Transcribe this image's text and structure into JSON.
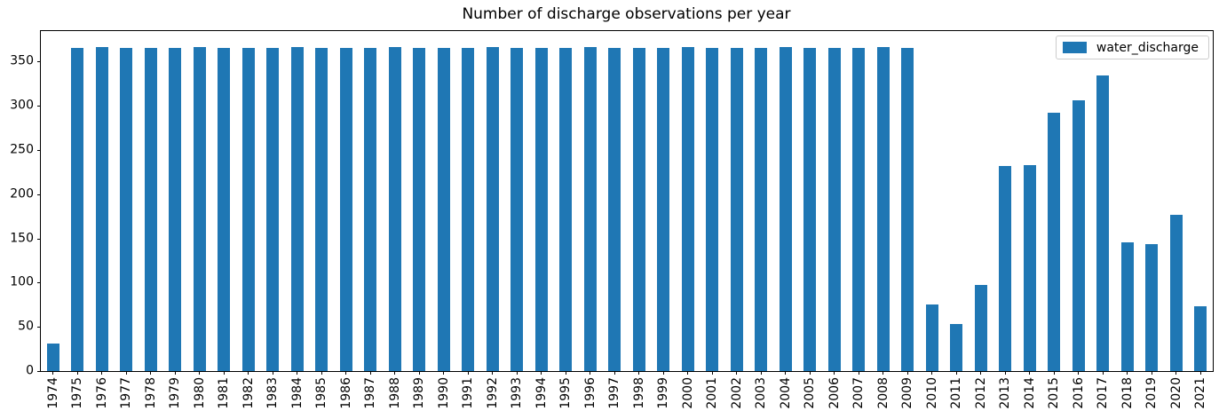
{
  "chart_data": {
    "type": "bar",
    "title": "Number of discharge observations per year",
    "legend_label": "water_discharge",
    "legend_position": "upper right",
    "grid": false,
    "bar_color": "#1f77b4",
    "xlabel": "",
    "ylabel": "",
    "ylim": [
      0,
      384.3
    ],
    "yticks": [
      0,
      50,
      100,
      150,
      200,
      250,
      300,
      350
    ],
    "categories": [
      "1974",
      "1975",
      "1976",
      "1977",
      "1978",
      "1979",
      "1980",
      "1981",
      "1982",
      "1983",
      "1984",
      "1985",
      "1986",
      "1987",
      "1988",
      "1989",
      "1990",
      "1991",
      "1992",
      "1993",
      "1994",
      "1995",
      "1996",
      "1997",
      "1998",
      "1999",
      "2000",
      "2001",
      "2002",
      "2003",
      "2004",
      "2005",
      "2006",
      "2007",
      "2008",
      "2009",
      "2010",
      "2011",
      "2012",
      "2013",
      "2014",
      "2015",
      "2016",
      "2017",
      "2018",
      "2019",
      "2020",
      "2021"
    ],
    "series": [
      {
        "name": "water_discharge",
        "values": [
          31,
          365,
          366,
          365,
          365,
          365,
          366,
          365,
          365,
          365,
          366,
          365,
          365,
          365,
          366,
          365,
          365,
          365,
          366,
          365,
          365,
          365,
          366,
          365,
          365,
          365,
          366,
          365,
          365,
          365,
          366,
          365,
          365,
          365,
          366,
          365,
          75,
          53,
          97,
          232,
          233,
          292,
          306,
          334,
          146,
          144,
          177,
          73
        ]
      }
    ]
  }
}
